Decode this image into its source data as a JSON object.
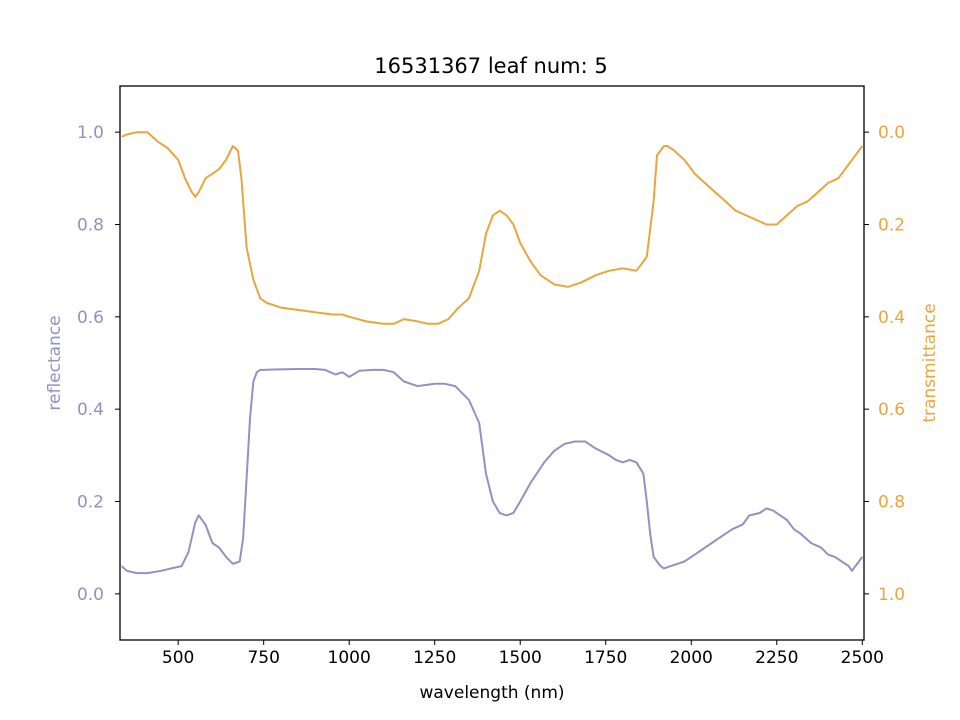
{
  "chart_data": {
    "type": "line",
    "title": "16531367 leaf num: 5",
    "xlabel": "wavelength (nm)",
    "ylabel_left": "reflectance",
    "ylabel_right": "transmittance",
    "xlim": [
      330,
      2505
    ],
    "ylim_left": [
      -0.1,
      1.1
    ],
    "ylim_right": [
      1.1,
      -0.1
    ],
    "right_axis_inverted": true,
    "x_ticks": [
      500,
      750,
      1000,
      1250,
      1500,
      1750,
      2000,
      2250,
      2500
    ],
    "y_ticks_left": [
      "0.0",
      "0.2",
      "0.4",
      "0.6",
      "0.8",
      "1.0"
    ],
    "y_ticks_right": [
      "0.0",
      "0.2",
      "0.4",
      "0.6",
      "0.8",
      "1.0"
    ],
    "colors": {
      "reflectance": "#9590c3",
      "transmittance": "#eba53d"
    },
    "series": [
      {
        "name": "reflectance",
        "axis": "left",
        "x": [
          335,
          350,
          380,
          410,
          450,
          480,
          510,
          530,
          550,
          560,
          580,
          600,
          620,
          640,
          660,
          680,
          690,
          700,
          710,
          720,
          730,
          740,
          750,
          780,
          850,
          900,
          930,
          960,
          980,
          1000,
          1030,
          1070,
          1100,
          1130,
          1160,
          1200,
          1250,
          1280,
          1310,
          1350,
          1380,
          1400,
          1420,
          1440,
          1460,
          1480,
          1500,
          1530,
          1570,
          1600,
          1630,
          1660,
          1690,
          1720,
          1760,
          1780,
          1800,
          1820,
          1840,
          1860,
          1870,
          1880,
          1890,
          1900,
          1910,
          1920,
          1940,
          1960,
          1980,
          2000,
          2030,
          2060,
          2090,
          2120,
          2150,
          2170,
          2200,
          2220,
          2240,
          2260,
          2280,
          2300,
          2320,
          2350,
          2380,
          2400,
          2420,
          2440,
          2460,
          2470,
          2480,
          2490,
          2500
        ],
        "y": [
          0.06,
          0.05,
          0.045,
          0.045,
          0.05,
          0.055,
          0.06,
          0.09,
          0.155,
          0.17,
          0.15,
          0.11,
          0.1,
          0.08,
          0.065,
          0.07,
          0.12,
          0.25,
          0.38,
          0.46,
          0.48,
          0.485,
          0.485,
          0.486,
          0.487,
          0.487,
          0.485,
          0.475,
          0.48,
          0.47,
          0.483,
          0.485,
          0.485,
          0.48,
          0.46,
          0.45,
          0.455,
          0.455,
          0.45,
          0.42,
          0.37,
          0.26,
          0.2,
          0.175,
          0.17,
          0.175,
          0.2,
          0.24,
          0.285,
          0.31,
          0.325,
          0.33,
          0.33,
          0.315,
          0.3,
          0.29,
          0.285,
          0.29,
          0.285,
          0.26,
          0.2,
          0.13,
          0.08,
          0.07,
          0.06,
          0.055,
          0.06,
          0.065,
          0.07,
          0.08,
          0.095,
          0.11,
          0.125,
          0.14,
          0.15,
          0.17,
          0.175,
          0.185,
          0.18,
          0.17,
          0.16,
          0.14,
          0.13,
          0.11,
          0.1,
          0.085,
          0.08,
          0.07,
          0.06,
          0.05,
          0.06,
          0.07,
          0.08
        ]
      },
      {
        "name": "transmittance",
        "axis": "right",
        "x": [
          335,
          350,
          380,
          410,
          440,
          470,
          500,
          520,
          540,
          550,
          560,
          580,
          600,
          620,
          640,
          660,
          675,
          685,
          700,
          720,
          740,
          760,
          800,
          850,
          900,
          950,
          980,
          1000,
          1050,
          1100,
          1130,
          1160,
          1200,
          1230,
          1260,
          1290,
          1320,
          1350,
          1380,
          1400,
          1420,
          1440,
          1460,
          1480,
          1500,
          1530,
          1560,
          1600,
          1640,
          1680,
          1720,
          1760,
          1800,
          1840,
          1870,
          1890,
          1900,
          1910,
          1920,
          1930,
          1950,
          1980,
          2010,
          2040,
          2070,
          2100,
          2130,
          2160,
          2190,
          2220,
          2250,
          2280,
          2310,
          2340,
          2370,
          2400,
          2430,
          2460,
          2480,
          2500
        ],
        "y": [
          0.01,
          0.005,
          0.0,
          0.0,
          0.02,
          0.035,
          0.06,
          0.1,
          0.13,
          0.14,
          0.13,
          0.1,
          0.09,
          0.08,
          0.06,
          0.03,
          0.04,
          0.1,
          0.25,
          0.32,
          0.36,
          0.37,
          0.38,
          0.385,
          0.39,
          0.395,
          0.395,
          0.4,
          0.41,
          0.415,
          0.415,
          0.405,
          0.41,
          0.415,
          0.415,
          0.405,
          0.38,
          0.36,
          0.3,
          0.22,
          0.18,
          0.17,
          0.18,
          0.2,
          0.24,
          0.28,
          0.31,
          0.33,
          0.335,
          0.325,
          0.31,
          0.3,
          0.295,
          0.3,
          0.27,
          0.15,
          0.05,
          0.04,
          0.03,
          0.03,
          0.04,
          0.06,
          0.09,
          0.11,
          0.13,
          0.15,
          0.17,
          0.18,
          0.19,
          0.2,
          0.2,
          0.18,
          0.16,
          0.15,
          0.13,
          0.11,
          0.1,
          0.07,
          0.05,
          0.03
        ]
      }
    ]
  }
}
